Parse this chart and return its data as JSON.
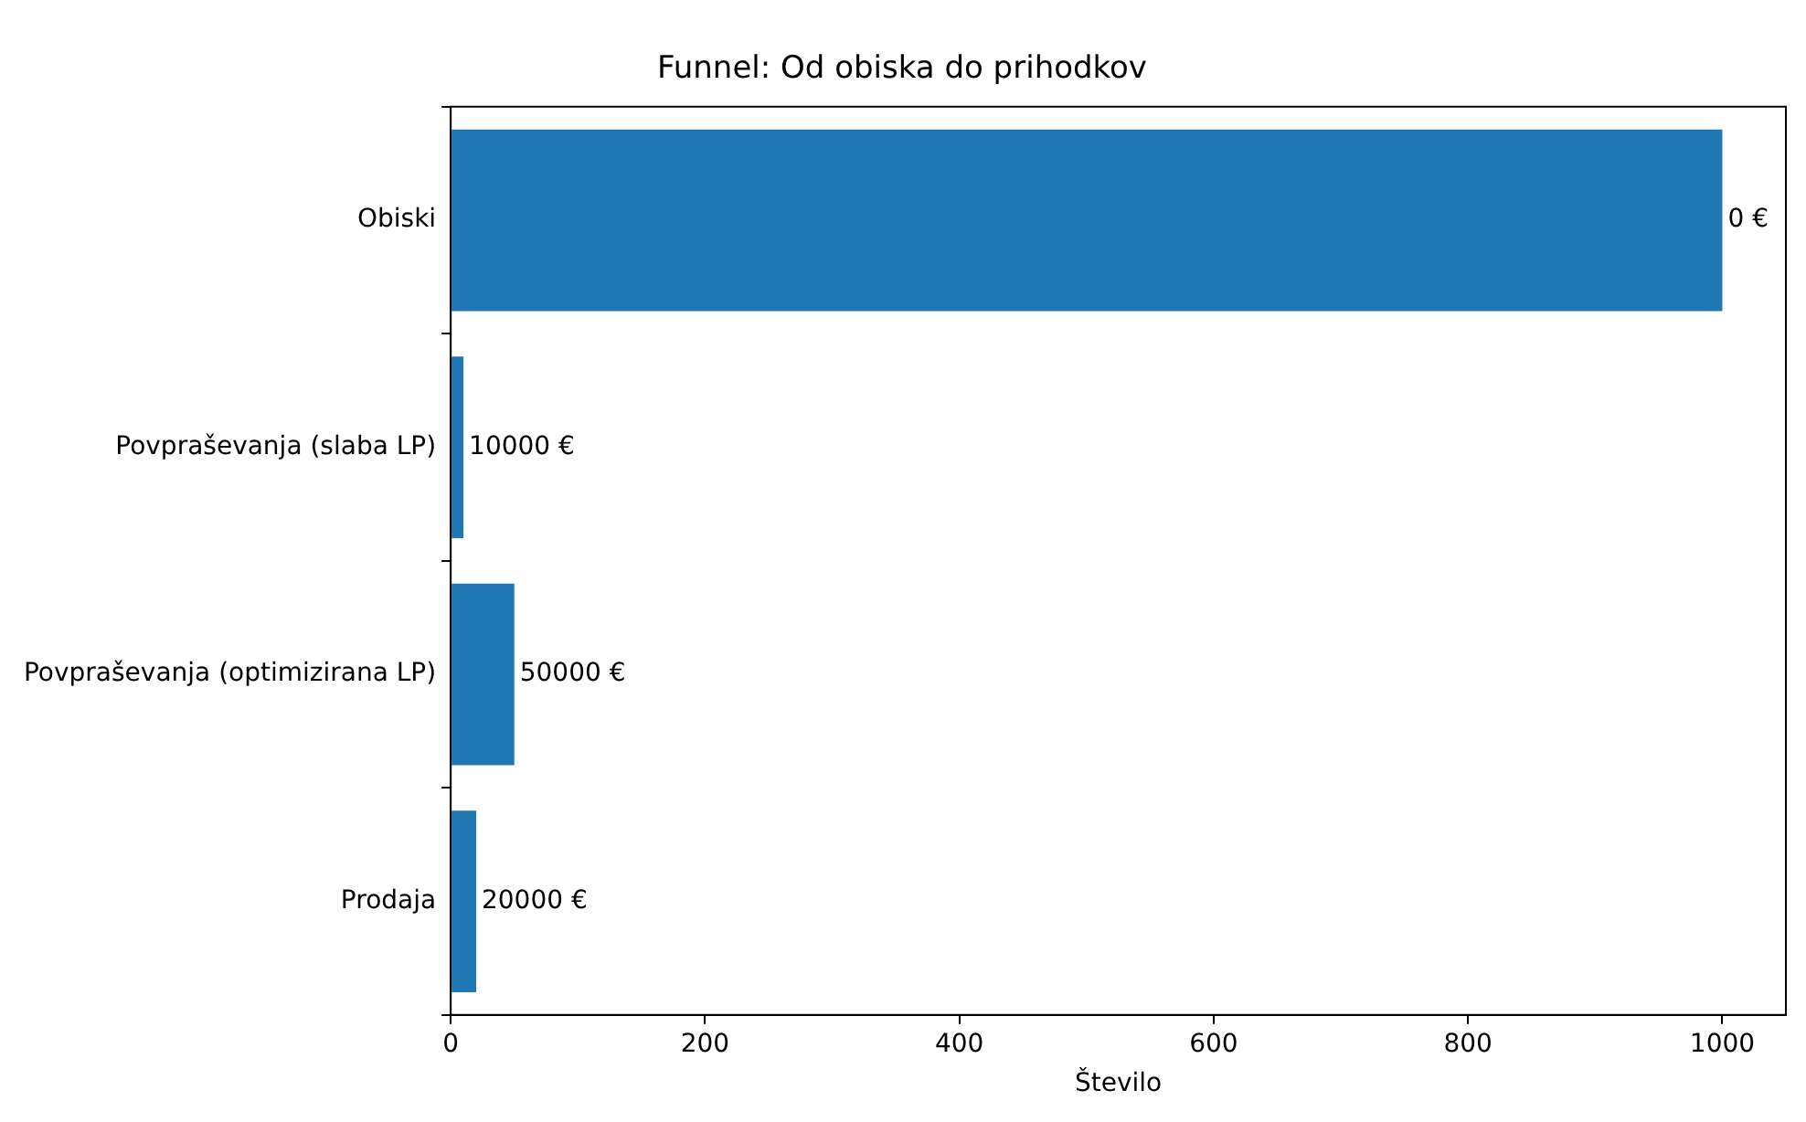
{
  "chart_data": {
    "type": "bar",
    "orientation": "horizontal",
    "title": "Funnel: Od obiska do prihodkov",
    "xlabel": "Število",
    "categories": [
      "Obiski",
      "Povpraševanja (slaba LP)",
      "Povpraševanja (optimizirana LP)",
      "Prodaja"
    ],
    "values": [
      1000,
      10,
      50,
      20
    ],
    "annotations": [
      {
        "text": "0 €",
        "x": 1000,
        "y": "Obiski"
      },
      {
        "text": "10000 €",
        "x": 10,
        "y": "Povpraševanja (slaba LP)"
      },
      {
        "text": "50000 €",
        "x": 50,
        "y": "Povpraševanja (optimizirana LP)"
      },
      {
        "text": "20000 €",
        "x": 20,
        "y": "Prodaja"
      }
    ],
    "color": "#1f77b4",
    "xlim": [
      0,
      1050
    ],
    "xticks": [
      0,
      200,
      400,
      600,
      800,
      1000
    ],
    "grid": false,
    "legend": false
  }
}
